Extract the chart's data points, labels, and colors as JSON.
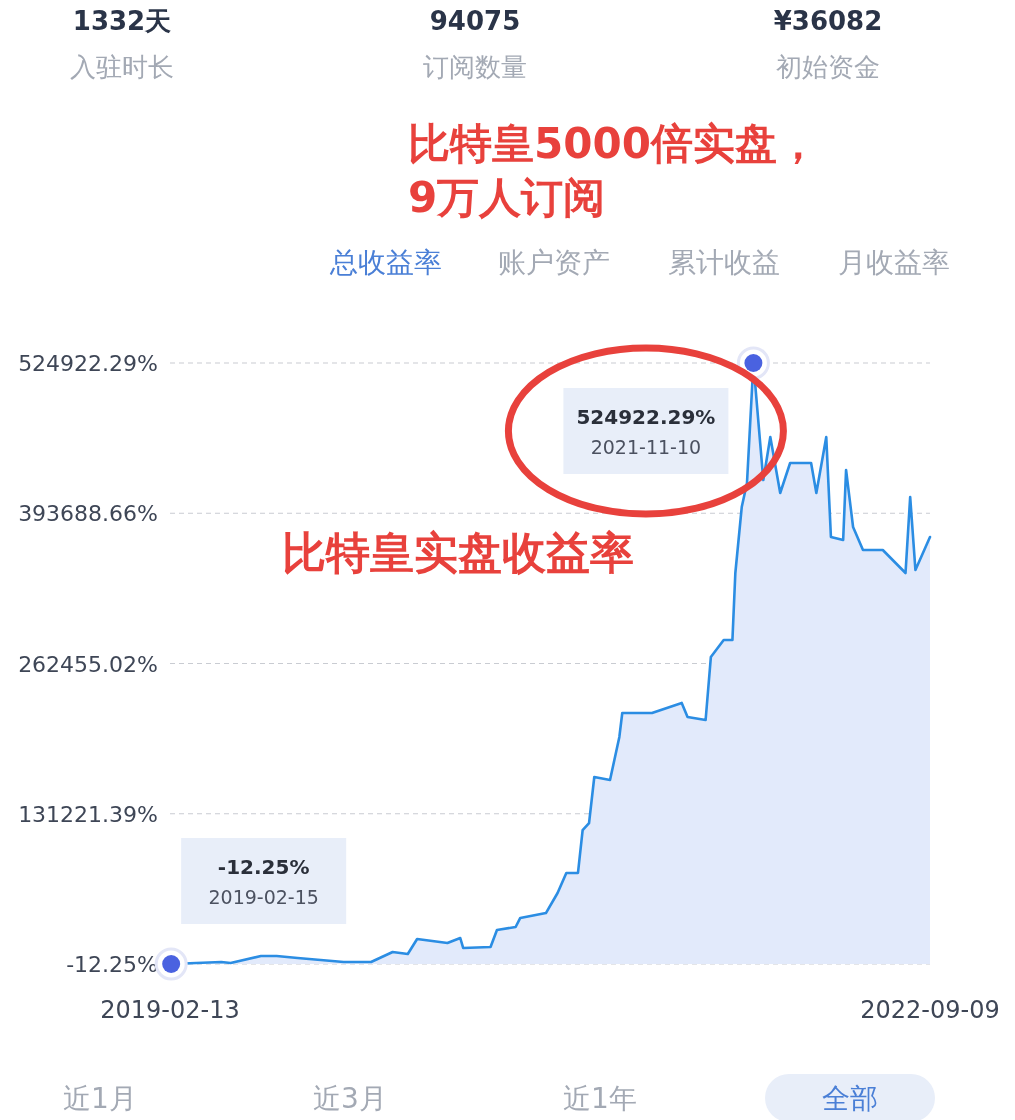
{
  "chart_data": {
    "type": "area",
    "color": "#2b8de3",
    "grid": "y",
    "x": [
      "2019-02-15",
      "2019-05-12",
      "2019-05-28",
      "2019-07-19",
      "2019-08-15",
      "2019-09-20",
      "2019-12-08",
      "2020-01-24",
      "2020-03-01",
      "2020-03-27",
      "2020-04-12",
      "2020-06-03",
      "2020-06-25",
      "2020-06-30",
      "2020-08-16",
      "2020-08-27",
      "2020-09-28",
      "2020-10-06",
      "2020-11-19",
      "2020-12-09",
      "2020-12-24",
      "2021-01-13",
      "2021-01-21",
      "2021-02-01",
      "2021-02-10",
      "2021-03-09",
      "2021-03-25",
      "2021-03-30",
      "2021-05-20",
      "2021-07-10",
      "2021-07-20",
      "2021-08-20",
      "2021-08-29",
      "2021-09-20",
      "2021-10-05",
      "2021-10-10",
      "2021-10-21",
      "2021-10-30",
      "2021-11-10",
      "2021-11-27",
      "2021-12-09",
      "2021-12-26",
      "2022-01-12",
      "2022-02-17",
      "2022-02-26",
      "2022-03-15",
      "2022-03-23",
      "2022-04-13",
      "2022-04-18",
      "2022-04-30",
      "2022-05-17",
      "2022-06-20",
      "2022-07-29",
      "2022-08-06",
      "2022-08-15",
      "2022-09-09"
    ],
    "values": [
      -12.25,
      1700,
      900,
      7000,
      7000,
      5200,
      1700,
      1700,
      10500,
      8700,
      21800,
      18300,
      22700,
      14000,
      14800,
      29700,
      32300,
      40200,
      44500,
      62000,
      79500,
      79500,
      117000,
      123100,
      163300,
      160700,
      198300,
      219200,
      219200,
      228000,
      215700,
      213100,
      268100,
      283000,
      283000,
      341500,
      399100,
      420100,
      524922.29,
      422700,
      460300,
      411400,
      437600,
      437600,
      411400,
      460300,
      372900,
      370300,
      431500,
      381700,
      361600,
      361600,
      341500,
      407900,
      344100,
      372900
    ],
    "xlim": [
      "2019-02-13",
      "2022-09-09"
    ],
    "xticks": [
      "2019-02-13",
      "2022-09-09"
    ],
    "ylim": [
      -12.25,
      524922.29
    ],
    "yticks": [
      {
        "value": -12.25,
        "label": "-12.25%"
      },
      {
        "value": 131221.385,
        "label": "131221.39%"
      },
      {
        "value": 262455.02,
        "label": "262455.02%"
      },
      {
        "value": 393688.655,
        "label": "393688.66%"
      },
      {
        "value": 524922.29,
        "label": "524922.29%"
      }
    ],
    "annotations": [
      "1332天",
      "入驻时长",
      "94075",
      "订阅数量",
      "¥36082",
      "初始资金",
      "比特皇5000倍实盘，",
      "9万人订阅",
      "总收益率",
      "账户资产",
      "累计收益",
      "月收益率",
      "比特皇实盘收益率",
      "524922.29%",
      "2021-11-10",
      "-12.25%",
      "2019-02-15",
      "近1月",
      "近3月",
      "近1年",
      "全部"
    ]
  }
}
